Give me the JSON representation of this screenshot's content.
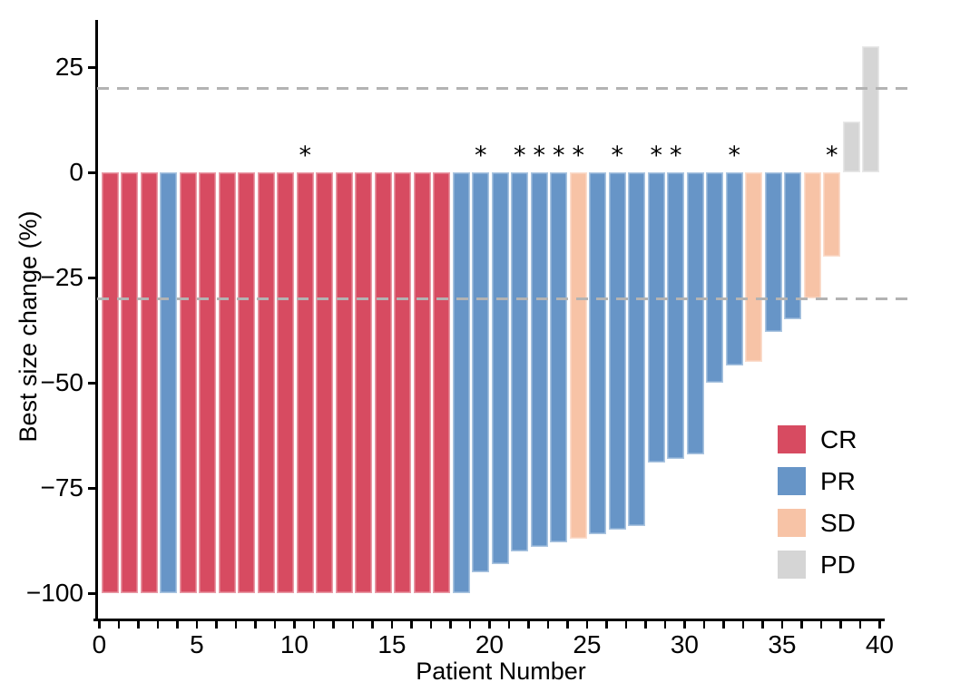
{
  "chart_data": {
    "type": "bar",
    "variant": "waterfall",
    "title": "",
    "xlabel": "Patient Number",
    "ylabel": "Best size change (%)",
    "xlim": [
      0,
      40
    ],
    "ylim": [
      -108,
      36
    ],
    "grid": false,
    "legend_position": "right-inside",
    "star_symbol": "*",
    "reference_lines": [
      {
        "value": 20,
        "style": "dashed",
        "color": "#b3b3b3"
      },
      {
        "value": -30,
        "style": "dashed",
        "color": "#b3b3b3"
      }
    ],
    "colors": {
      "CR": "#d74b61",
      "PR": "#6795c7",
      "SD": "#f7c3a6",
      "PD": "#d5d5d5"
    },
    "axis_color": "#000000",
    "yticks": [
      {
        "v": 25,
        "label": "25"
      },
      {
        "v": 0,
        "label": "0"
      },
      {
        "v": -25,
        "label": "−25"
      },
      {
        "v": -50,
        "label": "−50"
      },
      {
        "v": -75,
        "label": "−75"
      },
      {
        "v": -100,
        "label": "−100"
      }
    ],
    "xticks_minor_every": 1,
    "xticks": [
      {
        "v": 0,
        "label": "0"
      },
      {
        "v": 5,
        "label": "5"
      },
      {
        "v": 10,
        "label": "10"
      },
      {
        "v": 15,
        "label": "15"
      },
      {
        "v": 20,
        "label": "20"
      },
      {
        "v": 25,
        "label": "25"
      },
      {
        "v": 30,
        "label": "30"
      },
      {
        "v": 35,
        "label": "35"
      },
      {
        "v": 40,
        "label": "40"
      }
    ],
    "legend": [
      {
        "key": "CR",
        "label": "CR"
      },
      {
        "key": "PR",
        "label": "PR"
      },
      {
        "key": "SD",
        "label": "SD"
      },
      {
        "key": "PD",
        "label": "PD"
      }
    ],
    "bars": [
      {
        "patient": 1,
        "value": -100,
        "response": "CR",
        "star": false
      },
      {
        "patient": 2,
        "value": -100,
        "response": "CR",
        "star": false
      },
      {
        "patient": 3,
        "value": -100,
        "response": "CR",
        "star": false
      },
      {
        "patient": 4,
        "value": -100,
        "response": "PR",
        "star": false
      },
      {
        "patient": 5,
        "value": -100,
        "response": "CR",
        "star": false
      },
      {
        "patient": 6,
        "value": -100,
        "response": "CR",
        "star": false
      },
      {
        "patient": 7,
        "value": -100,
        "response": "CR",
        "star": false
      },
      {
        "patient": 8,
        "value": -100,
        "response": "CR",
        "star": false
      },
      {
        "patient": 9,
        "value": -100,
        "response": "CR",
        "star": false
      },
      {
        "patient": 10,
        "value": -100,
        "response": "CR",
        "star": false
      },
      {
        "patient": 11,
        "value": -100,
        "response": "CR",
        "star": true
      },
      {
        "patient": 12,
        "value": -100,
        "response": "CR",
        "star": false
      },
      {
        "patient": 13,
        "value": -100,
        "response": "CR",
        "star": false
      },
      {
        "patient": 14,
        "value": -100,
        "response": "CR",
        "star": false
      },
      {
        "patient": 15,
        "value": -100,
        "response": "CR",
        "star": false
      },
      {
        "patient": 16,
        "value": -100,
        "response": "CR",
        "star": false
      },
      {
        "patient": 17,
        "value": -100,
        "response": "CR",
        "star": false
      },
      {
        "patient": 18,
        "value": -100,
        "response": "CR",
        "star": false
      },
      {
        "patient": 19,
        "value": -100,
        "response": "PR",
        "star": false
      },
      {
        "patient": 20,
        "value": -95,
        "response": "PR",
        "star": true
      },
      {
        "patient": 21,
        "value": -93,
        "response": "PR",
        "star": false
      },
      {
        "patient": 22,
        "value": -90,
        "response": "PR",
        "star": true
      },
      {
        "patient": 23,
        "value": -89,
        "response": "PR",
        "star": true
      },
      {
        "patient": 24,
        "value": -88,
        "response": "PR",
        "star": true
      },
      {
        "patient": 25,
        "value": -87,
        "response": "SD",
        "star": true
      },
      {
        "patient": 26,
        "value": -86,
        "response": "PR",
        "star": false
      },
      {
        "patient": 27,
        "value": -85,
        "response": "PR",
        "star": true
      },
      {
        "patient": 28,
        "value": -84,
        "response": "PR",
        "star": false
      },
      {
        "patient": 29,
        "value": -69,
        "response": "PR",
        "star": true
      },
      {
        "patient": 30,
        "value": -68,
        "response": "PR",
        "star": true
      },
      {
        "patient": 31,
        "value": -67,
        "response": "PR",
        "star": false
      },
      {
        "patient": 32,
        "value": -50,
        "response": "PR",
        "star": false
      },
      {
        "patient": 33,
        "value": -46,
        "response": "PR",
        "star": true
      },
      {
        "patient": 34,
        "value": -45,
        "response": "SD",
        "star": false
      },
      {
        "patient": 35,
        "value": -38,
        "response": "PR",
        "star": false
      },
      {
        "patient": 36,
        "value": -35,
        "response": "PR",
        "star": false
      },
      {
        "patient": 37,
        "value": -30,
        "response": "SD",
        "star": false
      },
      {
        "patient": 38,
        "value": -20,
        "response": "SD",
        "star": true
      },
      {
        "patient": 39,
        "value": 12,
        "response": "PD",
        "star": false
      },
      {
        "patient": 40,
        "value": 30,
        "response": "PD",
        "star": false
      }
    ]
  }
}
